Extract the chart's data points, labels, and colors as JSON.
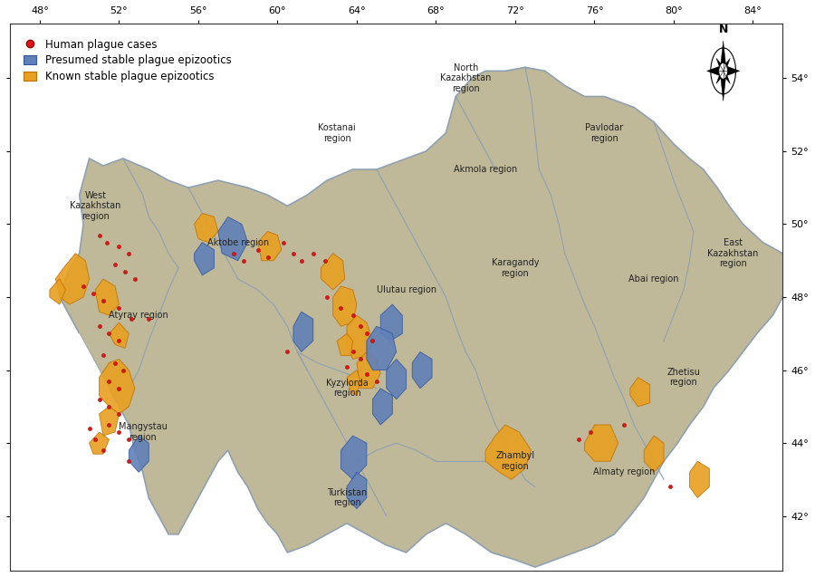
{
  "lon_min": 46.5,
  "lon_max": 85.5,
  "lat_min": 40.5,
  "lat_max": 55.5,
  "map_xlim": [
    46.5,
    85.5
  ],
  "map_ylim": [
    40.5,
    55.5
  ],
  "land_color": "#bfb99a",
  "border_color": "#8fa0b0",
  "known_color": "#e8a020",
  "known_edge": "#c07000",
  "presumed_color": "#6080b8",
  "presumed_edge": "#3055a0",
  "case_color": "#dd1515",
  "case_edge": "#990000",
  "bg_color": "#ffffff",
  "legend_items": [
    {
      "label": "Human plague cases",
      "type": "dot"
    },
    {
      "label": "Presumed stable plague epizootics",
      "type": "box_blue"
    },
    {
      "label": "Known stable plague epizootics",
      "type": "box_orange"
    }
  ],
  "xticks": [
    48,
    52,
    56,
    60,
    64,
    68,
    72,
    76,
    80,
    84
  ],
  "yticks": [
    42,
    44,
    46,
    48,
    50,
    52,
    54
  ],
  "compass_lon": 82.5,
  "compass_lat": 54.2,
  "region_labels": [
    {
      "name": "West\nKazakhstan\nregion",
      "lon": 50.8,
      "lat": 50.5,
      "fs": 7
    },
    {
      "name": "Kostanai\nregion",
      "lon": 63.0,
      "lat": 52.5,
      "fs": 7
    },
    {
      "name": "North\nKazakhstan\nregion",
      "lon": 69.5,
      "lat": 54.0,
      "fs": 7
    },
    {
      "name": "Pavlodar\nregion",
      "lon": 76.5,
      "lat": 52.5,
      "fs": 7
    },
    {
      "name": "East\nKazakhstan\nregion",
      "lon": 83.0,
      "lat": 49.2,
      "fs": 7
    },
    {
      "name": "Aktobe region",
      "lon": 58.0,
      "lat": 49.5,
      "fs": 7
    },
    {
      "name": "Akmola region",
      "lon": 70.5,
      "lat": 51.5,
      "fs": 7
    },
    {
      "name": "Karagandy\nregion",
      "lon": 72.0,
      "lat": 48.8,
      "fs": 7
    },
    {
      "name": "Abai region",
      "lon": 79.0,
      "lat": 48.5,
      "fs": 7
    },
    {
      "name": "Ulutau region",
      "lon": 66.5,
      "lat": 48.2,
      "fs": 7
    },
    {
      "name": "Kyzylorda\nregion",
      "lon": 63.5,
      "lat": 45.5,
      "fs": 7
    },
    {
      "name": "Atyraу region",
      "lon": 53.0,
      "lat": 47.5,
      "fs": 7
    },
    {
      "name": "Mangystau\nregion",
      "lon": 53.2,
      "lat": 44.3,
      "fs": 7
    },
    {
      "name": "Turkistan\nregion",
      "lon": 63.5,
      "lat": 42.5,
      "fs": 7
    },
    {
      "name": "Zhambyl\nregion",
      "lon": 72.0,
      "lat": 43.5,
      "fs": 7
    },
    {
      "name": "Almaty region",
      "lon": 77.5,
      "lat": 43.2,
      "fs": 7
    },
    {
      "name": "Zhetisu\nregion",
      "lon": 80.5,
      "lat": 45.8,
      "fs": 7
    }
  ],
  "human_cases": [
    [
      51.0,
      49.7
    ],
    [
      51.4,
      49.5
    ],
    [
      52.0,
      49.4
    ],
    [
      52.5,
      49.2
    ],
    [
      51.8,
      48.9
    ],
    [
      52.3,
      48.7
    ],
    [
      52.8,
      48.5
    ],
    [
      50.2,
      48.3
    ],
    [
      50.7,
      48.1
    ],
    [
      51.2,
      47.9
    ],
    [
      52.0,
      47.7
    ],
    [
      52.6,
      47.4
    ],
    [
      53.5,
      47.4
    ],
    [
      51.0,
      47.2
    ],
    [
      51.5,
      47.0
    ],
    [
      52.0,
      46.8
    ],
    [
      51.2,
      46.4
    ],
    [
      51.8,
      46.2
    ],
    [
      52.2,
      46.0
    ],
    [
      51.5,
      45.7
    ],
    [
      52.0,
      45.5
    ],
    [
      51.0,
      45.2
    ],
    [
      51.5,
      45.0
    ],
    [
      52.0,
      44.8
    ],
    [
      51.5,
      44.5
    ],
    [
      52.0,
      44.3
    ],
    [
      52.5,
      44.1
    ],
    [
      50.5,
      44.4
    ],
    [
      50.8,
      44.1
    ],
    [
      51.2,
      43.8
    ],
    [
      52.5,
      43.5
    ],
    [
      57.8,
      49.2
    ],
    [
      58.3,
      49.0
    ],
    [
      59.0,
      49.3
    ],
    [
      59.5,
      49.1
    ],
    [
      60.3,
      49.5
    ],
    [
      60.8,
      49.2
    ],
    [
      61.2,
      49.0
    ],
    [
      61.8,
      49.2
    ],
    [
      62.4,
      49.0
    ],
    [
      62.5,
      48.0
    ],
    [
      63.2,
      47.7
    ],
    [
      63.8,
      47.5
    ],
    [
      64.2,
      47.2
    ],
    [
      64.5,
      47.0
    ],
    [
      64.8,
      46.8
    ],
    [
      63.8,
      46.5
    ],
    [
      64.2,
      46.3
    ],
    [
      63.5,
      46.1
    ],
    [
      64.5,
      45.9
    ],
    [
      65.0,
      45.7
    ],
    [
      60.5,
      46.5
    ],
    [
      75.2,
      44.1
    ],
    [
      75.8,
      44.3
    ],
    [
      77.5,
      44.5
    ],
    [
      79.8,
      42.8
    ]
  ]
}
